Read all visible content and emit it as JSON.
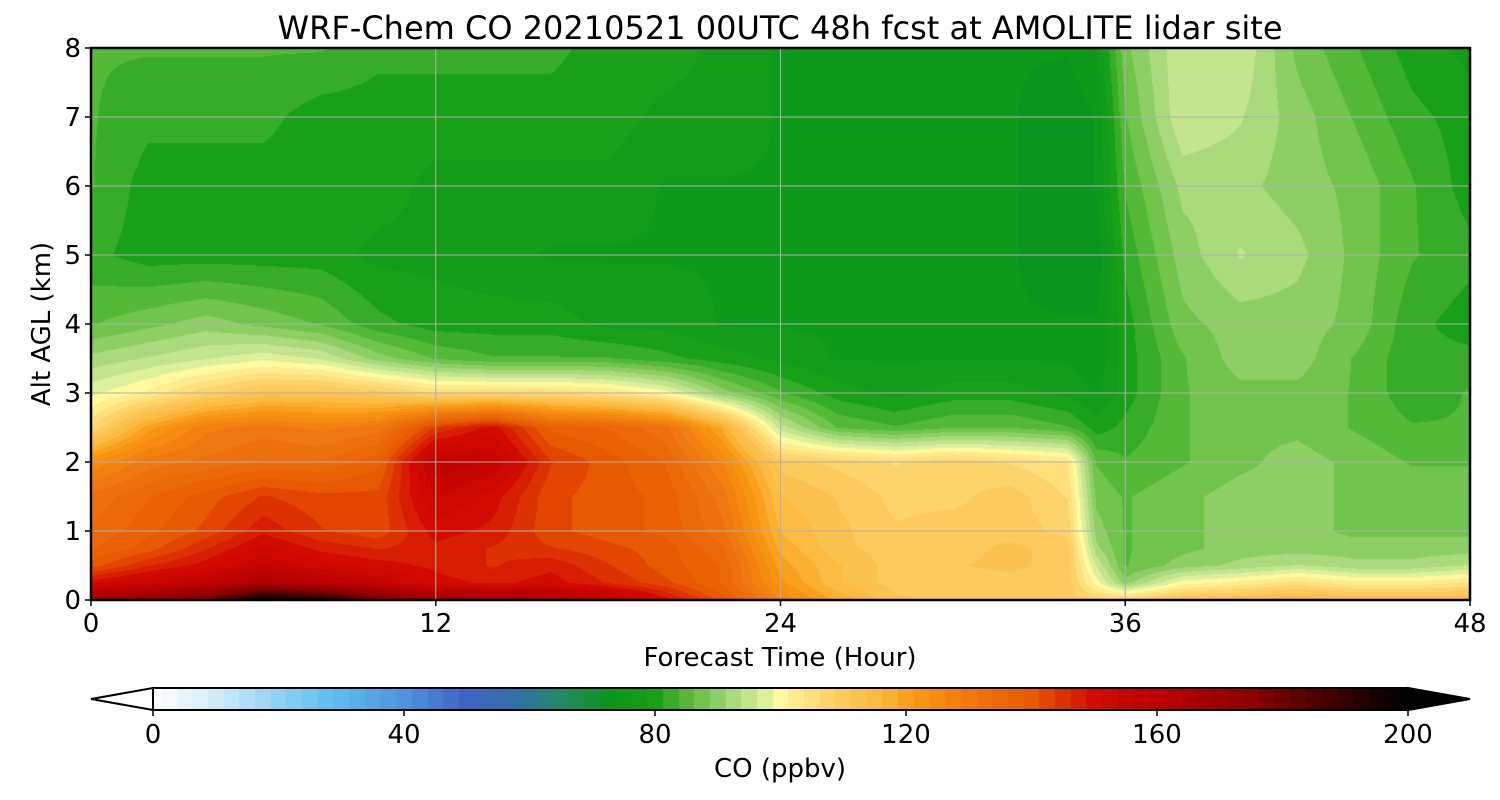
{
  "chart_data": {
    "type": "heatmap",
    "title": "WRF-Chem CO  20210521 00UTC 48h fcst at AMOLITE lidar site",
    "xlabel": "Forecast Time (Hour)",
    "ylabel": "Alt AGL (km)",
    "xlim": [
      0,
      48
    ],
    "ylim": [
      0,
      8
    ],
    "xticks": [
      0,
      12,
      24,
      36,
      48
    ],
    "yticks": [
      0,
      1,
      2,
      3,
      4,
      5,
      6,
      7,
      8
    ],
    "grid": true,
    "colorbar": {
      "label": "CO  (ppbv)",
      "range": [
        0,
        200
      ],
      "ticks": [
        0,
        40,
        80,
        120,
        160,
        200
      ],
      "extend": "both",
      "orientation": "horizontal",
      "position": "bottom",
      "stops": [
        [
          0,
          "#ffffff"
        ],
        [
          10,
          "#d2ecfa"
        ],
        [
          20,
          "#8fd2f5"
        ],
        [
          28,
          "#5ec0f0"
        ],
        [
          40,
          "#4d94dc"
        ],
        [
          50,
          "#3c64c4"
        ],
        [
          58,
          "#2f72a8"
        ],
        [
          66,
          "#1f8a5a"
        ],
        [
          73,
          "#08961a"
        ],
        [
          80,
          "#19a019"
        ],
        [
          86,
          "#5fbe3c"
        ],
        [
          92,
          "#a6d87a"
        ],
        [
          97,
          "#d6ee9a"
        ],
        [
          100,
          "#fffaa0"
        ],
        [
          108,
          "#fdd068"
        ],
        [
          116,
          "#fcb83c"
        ],
        [
          122,
          "#f89610"
        ],
        [
          130,
          "#f07810"
        ],
        [
          140,
          "#e85a00"
        ],
        [
          150,
          "#d20a00"
        ],
        [
          160,
          "#bc0000"
        ],
        [
          175,
          "#8c0000"
        ],
        [
          190,
          "#320000"
        ],
        [
          200,
          "#000000"
        ]
      ]
    },
    "x": [
      0,
      2,
      4,
      6,
      8,
      10,
      12,
      14,
      16,
      18,
      20,
      22,
      24,
      26,
      28,
      30,
      32,
      34,
      35,
      36,
      38,
      40,
      42,
      44,
      46,
      48
    ],
    "y": [
      0,
      0.25,
      0.5,
      0.75,
      1,
      1.5,
      2,
      2.5,
      3,
      3.5,
      4,
      5,
      6,
      7,
      8
    ],
    "z": [
      [
        170,
        175,
        180,
        200,
        195,
        180,
        170,
        168,
        165,
        160,
        150,
        140,
        126,
        118,
        112,
        110,
        110,
        110,
        108,
        108,
        112,
        114,
        116,
        114,
        114,
        114
      ],
      [
        150,
        154,
        158,
        165,
        160,
        156,
        150,
        148,
        150,
        146,
        142,
        136,
        122,
        114,
        110,
        110,
        110,
        110,
        100,
        90,
        100,
        102,
        105,
        102,
        102,
        104
      ],
      [
        140,
        146,
        150,
        156,
        152,
        150,
        148,
        146,
        148,
        144,
        140,
        136,
        120,
        114,
        110,
        111,
        112,
        110,
        96,
        86,
        90,
        92,
        94,
        92,
        92,
        94
      ],
      [
        136,
        140,
        146,
        152,
        148,
        146,
        148,
        146,
        144,
        142,
        140,
        134,
        118,
        112,
        110,
        110,
        112,
        110,
        92,
        86,
        88,
        90,
        90,
        90,
        90,
        90
      ],
      [
        134,
        138,
        142,
        148,
        144,
        142,
        150,
        148,
        142,
        140,
        138,
        132,
        116,
        112,
        109,
        110,
        110,
        108,
        90,
        86,
        88,
        90,
        90,
        88,
        88,
        88
      ],
      [
        132,
        136,
        140,
        144,
        142,
        142,
        154,
        150,
        142,
        140,
        138,
        130,
        114,
        111,
        108,
        108,
        110,
        106,
        88,
        86,
        88,
        90,
        90,
        88,
        88,
        88
      ],
      [
        124,
        130,
        132,
        134,
        134,
        138,
        158,
        156,
        144,
        140,
        136,
        126,
        110,
        108,
        106,
        108,
        106,
        104,
        86,
        84,
        86,
        88,
        90,
        88,
        86,
        86
      ],
      [
        106,
        120,
        128,
        130,
        128,
        130,
        144,
        150,
        138,
        136,
        132,
        118,
        95,
        86,
        84,
        86,
        86,
        84,
        80,
        82,
        86,
        88,
        88,
        86,
        84,
        84
      ],
      [
        98,
        102,
        108,
        112,
        112,
        110,
        106,
        106,
        106,
        104,
        100,
        90,
        84,
        80,
        78,
        80,
        80,
        78,
        76,
        80,
        86,
        88,
        88,
        86,
        82,
        84
      ],
      [
        92,
        94,
        96,
        98,
        96,
        90,
        86,
        84,
        84,
        84,
        82,
        80,
        78,
        76,
        76,
        76,
        76,
        76,
        74,
        80,
        86,
        90,
        90,
        86,
        82,
        82
      ],
      [
        86,
        88,
        90,
        88,
        86,
        82,
        80,
        80,
        80,
        78,
        78,
        76,
        76,
        76,
        75,
        75,
        74,
        74,
        74,
        80,
        88,
        90,
        90,
        88,
        82,
        80
      ],
      [
        82,
        80,
        80,
        80,
        80,
        78,
        78,
        77,
        76,
        76,
        76,
        76,
        76,
        75,
        74,
        74,
        74,
        72,
        72,
        82,
        90,
        94,
        92,
        88,
        84,
        82
      ],
      [
        84,
        80,
        80,
        80,
        80,
        80,
        78,
        78,
        78,
        78,
        76,
        76,
        76,
        75,
        74,
        74,
        74,
        72,
        74,
        84,
        92,
        92,
        90,
        88,
        84,
        80
      ],
      [
        84,
        82,
        82,
        82,
        80,
        80,
        80,
        80,
        80,
        80,
        78,
        78,
        76,
        76,
        75,
        75,
        74,
        72,
        74,
        86,
        96,
        94,
        90,
        86,
        82,
        80
      ],
      [
        84,
        84,
        84,
        84,
        84,
        82,
        82,
        82,
        82,
        80,
        80,
        78,
        76,
        76,
        76,
        76,
        74,
        74,
        76,
        88,
        96,
        96,
        88,
        84,
        80,
        78
      ]
    ]
  }
}
